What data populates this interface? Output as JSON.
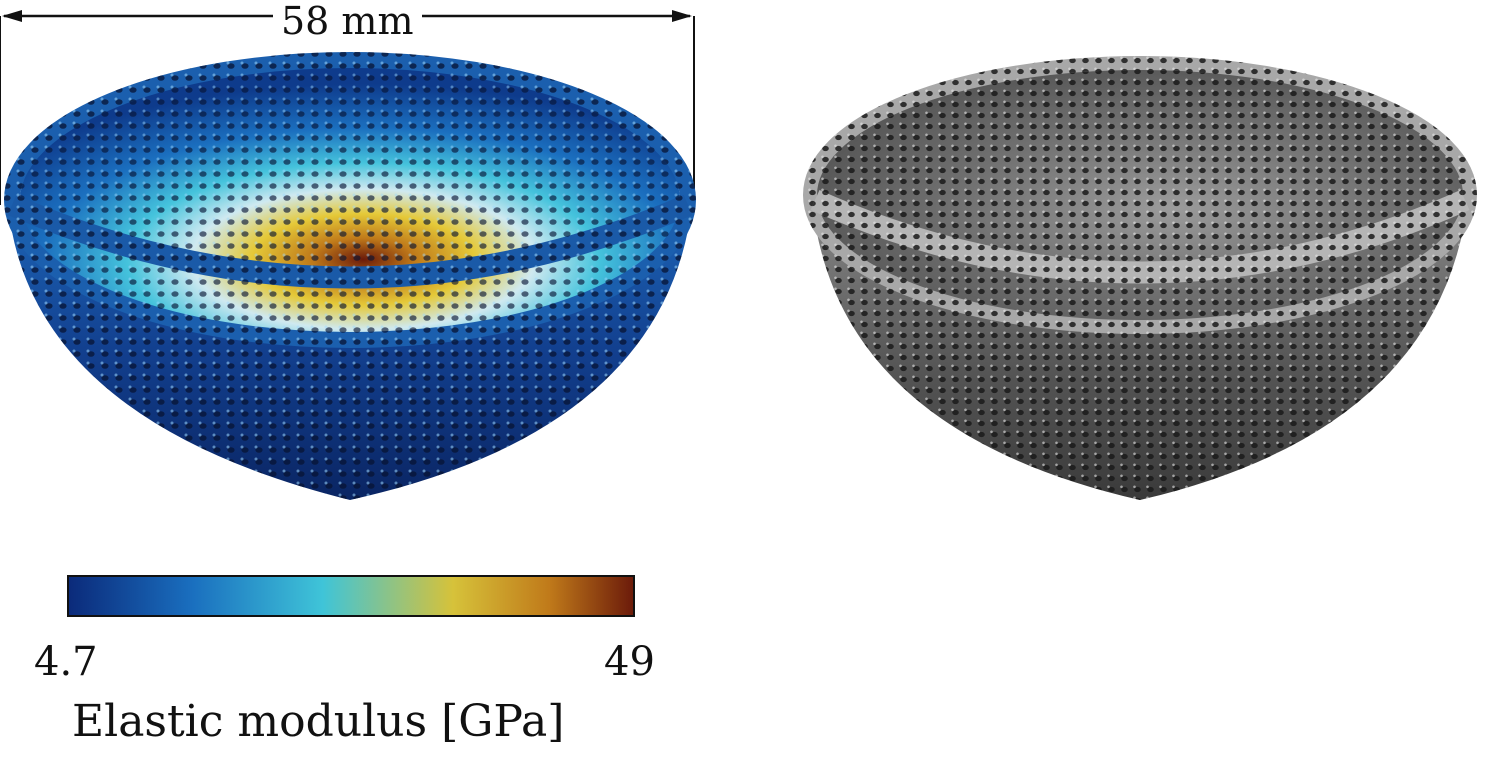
{
  "dimension": {
    "label": "58 mm"
  },
  "colorbar": {
    "min_label": "4.7",
    "max_label": "49",
    "title": "Elastic modulus [GPa]",
    "colors": [
      "#0b2a7a",
      "#1a6fbf",
      "#3fc4d8",
      "#d6c23a",
      "#c07a1a",
      "#6b1a0a"
    ]
  },
  "images": {
    "left": {
      "subject": "color-mapped-lattice-bowl"
    },
    "right": {
      "subject": "grayscale-printed-lattice-bowl"
    }
  }
}
